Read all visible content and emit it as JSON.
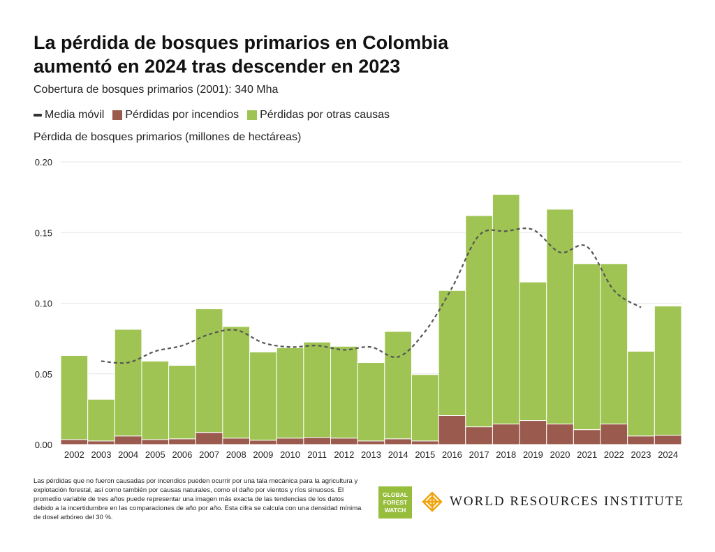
{
  "title_line1": "La pérdida de bosques primarios en Colombia",
  "title_line2": "aumentó en 2024 tras descender en 2023",
  "subtitle": "Cobertura de bosques primarios (2001): 340 Mha",
  "legend": {
    "moving_avg": "Media móvil",
    "fire": "Pérdidas por incendios",
    "other": "Pérdidas por otras causas"
  },
  "colors": {
    "fire": "#9b5a4e",
    "other": "#9fc453",
    "moving_avg": "#555555",
    "grid": "#e6e6e6"
  },
  "chart_data": {
    "type": "bar",
    "stacked": true,
    "ylabel": "Pérdida de bosques primarios (millones de hectáreas)",
    "ylim": [
      0,
      0.2
    ],
    "yticks": [
      "0.00",
      "0.05",
      "0.10",
      "0.15",
      "0.20"
    ],
    "ytick_values": [
      0,
      0.05,
      0.1,
      0.15,
      0.2
    ],
    "grid": true,
    "legend_position": "top-left",
    "categories": [
      "2002",
      "2003",
      "2004",
      "2005",
      "2006",
      "2007",
      "2008",
      "2009",
      "2010",
      "2011",
      "2012",
      "2013",
      "2014",
      "2015",
      "2016",
      "2017",
      "2018",
      "2019",
      "2020",
      "2021",
      "2022",
      "2023",
      "2024"
    ],
    "series": [
      {
        "name": "Pérdidas por incendios",
        "values": [
          0.0035,
          0.0025,
          0.006,
          0.0035,
          0.004,
          0.0085,
          0.0045,
          0.003,
          0.0045,
          0.005,
          0.0045,
          0.0025,
          0.004,
          0.0025,
          0.0205,
          0.0125,
          0.0145,
          0.017,
          0.0145,
          0.0105,
          0.0145,
          0.006,
          0.0065
        ]
      },
      {
        "name": "Pérdidas por otras causas",
        "values": [
          0.0595,
          0.0295,
          0.0755,
          0.0555,
          0.052,
          0.0875,
          0.079,
          0.0625,
          0.064,
          0.0675,
          0.065,
          0.0555,
          0.076,
          0.047,
          0.0885,
          0.1495,
          0.1625,
          0.098,
          0.152,
          0.1175,
          0.1135,
          0.06,
          0.0915
        ]
      },
      {
        "name": "Media móvil",
        "type": "line",
        "x": [
          "2003",
          "2004",
          "2005",
          "2006",
          "2007",
          "2008",
          "2009",
          "2010",
          "2011",
          "2012",
          "2013",
          "2014",
          "2015",
          "2016",
          "2017",
          "2018",
          "2019",
          "2020",
          "2021",
          "2022",
          "2023"
        ],
        "values": [
          0.059,
          0.058,
          0.066,
          0.07,
          0.078,
          0.081,
          0.072,
          0.069,
          0.07,
          0.067,
          0.069,
          0.062,
          0.08,
          0.111,
          0.148,
          0.151,
          0.152,
          0.136,
          0.14,
          0.109,
          0.097
        ]
      }
    ]
  },
  "footnote": "Las pérdidas que no fueron causadas por incendios pueden ocurrir por una tala mecánica para la agricultura y explotación forestal, así como también por causas naturales, como el daño por vientos y ríos sinuosos. El promedio variable de tres años puede representar una imagen más exacta de las tendencias de los datos debido a la incertidumbre en las comparaciones de año por año. Esta cifra se calcula con una densidad mínima de dosel arbóreo del 30 %.",
  "logos": {
    "gfw_line1": "GLOBAL",
    "gfw_line2": "FOREST",
    "gfw_line3": "WATCH",
    "wri": "WORLD RESOURCES INSTITUTE"
  }
}
